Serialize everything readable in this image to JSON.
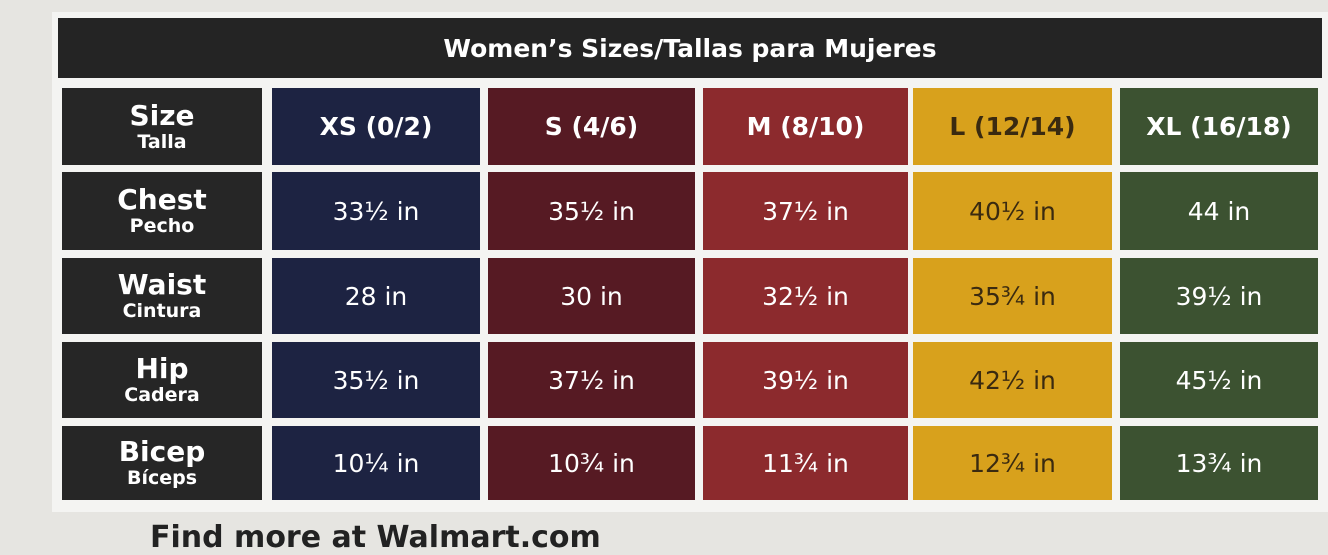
{
  "title": "Women’s Sizes/Tallas para Mujeres",
  "header": {
    "label": "Size",
    "sublabel": "Talla",
    "columns": [
      "XS (0/2)",
      "S (4/6)",
      "M (8/10)",
      "L (12/14)",
      "XL (16/18)"
    ]
  },
  "rows": [
    {
      "label": "Chest",
      "sublabel": "Pecho",
      "values": [
        "33½ in",
        "35½ in",
        "37½ in",
        "40½ in",
        "44 in"
      ]
    },
    {
      "label": "Waist",
      "sublabel": "Cintura",
      "values": [
        "28 in",
        "30 in",
        "32½ in",
        "35¾ in",
        "39½ in"
      ]
    },
    {
      "label": "Hip",
      "sublabel": "Cadera",
      "values": [
        "35½ in",
        "37½ in",
        "39½ in",
        "42½ in",
        "45½ in"
      ]
    },
    {
      "label": "Bicep",
      "sublabel": "Bíceps",
      "values": [
        "10¼ in",
        "10¾ in",
        "11¾ in",
        "12¾ in",
        "13¾ in"
      ]
    }
  ],
  "footer": "Find more at Walmart.com"
}
